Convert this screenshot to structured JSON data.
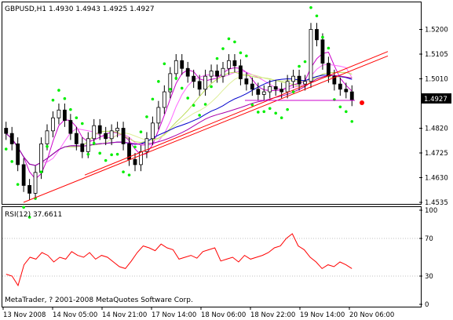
{
  "chart_header": {
    "symbol_line": "GBPUSD,H1  1.4930 1.4943 1.4925 1.4927"
  },
  "price_axis": {
    "ticks": [
      "1.5200",
      "1.5105",
      "1.5010",
      "1.4820",
      "1.4725",
      "1.4630",
      "1.4535"
    ],
    "current_price_label": "1.4927"
  },
  "rsi_panel": {
    "title": "RSI(12) 37.6611",
    "ticks": [
      "100",
      "70",
      "30",
      "0"
    ]
  },
  "footer": {
    "copyright": "MetaTrader, ? 2001-2008 MetaQuotes Software Corp."
  },
  "time_axis": {
    "labels": [
      "13 Nov 2008",
      "14 Nov 05:00",
      "14 Nov 21:00",
      "17 Nov 14:00",
      "18 Nov 06:00",
      "18 Nov 22:00",
      "19 Nov 14:00",
      "20 Nov 06:00"
    ]
  },
  "colors": {
    "bullish_candle": "#ffffff",
    "bearish_candle": "#000000",
    "parabolic_sar": "#00ee00",
    "trendline": "#ff0000",
    "rsi_line": "#ff0000",
    "ma_fast": "#cc00cc",
    "ma_slow": "#0000cc"
  },
  "chart_data": {
    "type": "line",
    "title": "",
    "xlabel": "",
    "ylabel": "",
    "ylim": [
      1.4535,
      1.5295
    ],
    "series": [
      {
        "name": "",
        "values": [
          1.48,
          1.476,
          1.468,
          1.46,
          1.457,
          1.465,
          1.476,
          1.481,
          1.486,
          1.489,
          1.485,
          1.48,
          1.476,
          1.473,
          1.478,
          1.483,
          1.48,
          1.478,
          1.481,
          1.482,
          1.476,
          1.47,
          1.468,
          1.473,
          1.478,
          1.484,
          1.49,
          1.496,
          1.503,
          1.508,
          1.505,
          1.502,
          1.5,
          1.497,
          1.502,
          1.504,
          1.502,
          1.505,
          1.508,
          1.506,
          1.501,
          1.499,
          1.497,
          1.495,
          1.496,
          1.498,
          1.497,
          1.496,
          1.5,
          1.502,
          1.499,
          1.5,
          1.52,
          1.516,
          1.507,
          1.502,
          1.499,
          1.497,
          1.496,
          1.493
        ]
      }
    ]
  },
  "rsi_data": {
    "ylim": [
      0,
      100
    ],
    "values": [
      32,
      30,
      20,
      42,
      50,
      48,
      55,
      52,
      45,
      50,
      48,
      56,
      52,
      50,
      55,
      48,
      52,
      50,
      45,
      40,
      38,
      46,
      55,
      62,
      60,
      57,
      64,
      60,
      58,
      48,
      50,
      52,
      49,
      56,
      58,
      60,
      46,
      48,
      50,
      45,
      52,
      48,
      50,
      52,
      55,
      60,
      62,
      70,
      75,
      62,
      58,
      50,
      45,
      38,
      42,
      40,
      45,
      42,
      38
    ]
  },
  "trendlines": {
    "points": [
      [
        1.4535,
        1.5098
      ],
      [
        1.464,
        1.5115
      ]
    ],
    "horizontal_level": 1.4927
  }
}
